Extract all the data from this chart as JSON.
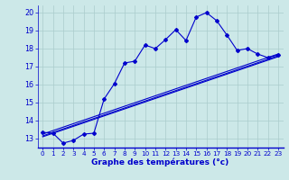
{
  "xlabel": "Graphe des températures (°c)",
  "background_color": "#cce8e8",
  "grid_color": "#aacccc",
  "line_color": "#0000cc",
  "xlim": [
    -0.5,
    23.5
  ],
  "ylim": [
    12.5,
    20.4
  ],
  "yticks": [
    13,
    14,
    15,
    16,
    17,
    18,
    19,
    20
  ],
  "xticks": [
    0,
    1,
    2,
    3,
    4,
    5,
    6,
    7,
    8,
    9,
    10,
    11,
    12,
    13,
    14,
    15,
    16,
    17,
    18,
    19,
    20,
    21,
    22,
    23
  ],
  "main_x": [
    0,
    1,
    2,
    3,
    4,
    5,
    6,
    7,
    8,
    9,
    10,
    11,
    12,
    13,
    14,
    15,
    16,
    17,
    18,
    19,
    20,
    21,
    22,
    23
  ],
  "main_y": [
    13.35,
    13.3,
    12.75,
    12.9,
    13.25,
    13.3,
    15.2,
    16.05,
    17.2,
    17.3,
    18.2,
    18.0,
    18.5,
    19.05,
    18.45,
    19.75,
    20.0,
    19.55,
    18.75,
    17.9,
    18.0,
    17.7,
    17.5,
    17.65
  ],
  "line2_x": [
    0,
    23
  ],
  "line2_y": [
    13.1,
    17.55
  ],
  "line3_x": [
    0,
    23
  ],
  "line3_y": [
    13.15,
    17.6
  ],
  "line4_x": [
    0,
    23
  ],
  "line4_y": [
    13.25,
    17.7
  ]
}
